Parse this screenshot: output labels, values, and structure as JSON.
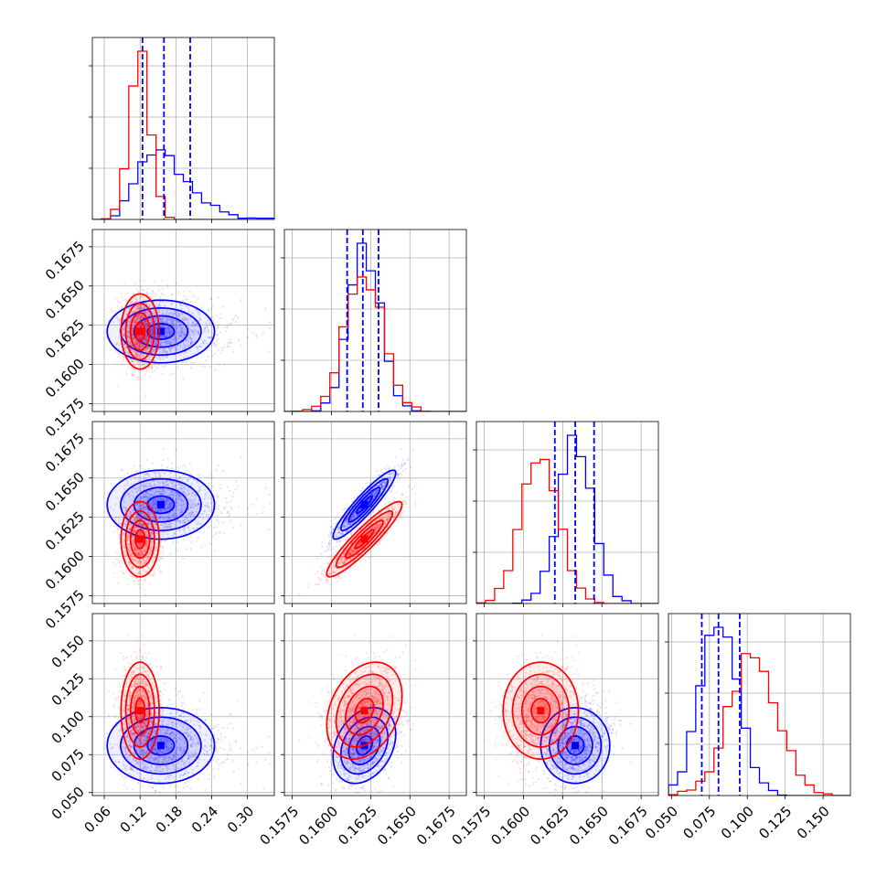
{
  "chart_data": {
    "type": "corner",
    "parameters": 4,
    "grid": true,
    "colors": {
      "set_a": "#0000ff",
      "set_b": "#ff0000"
    },
    "axes": [
      {
        "range": [
          0.04,
          0.345
        ],
        "ticks": [
          0.06,
          0.12,
          0.18,
          0.24,
          0.3
        ],
        "tick_labels": [
          "0.06",
          "0.12",
          "0.18",
          "0.24",
          "0.30"
        ]
      },
      {
        "range": [
          0.157,
          0.1686
        ],
        "ticks": [
          0.1575,
          0.16,
          0.1625,
          0.165,
          0.1675
        ],
        "tick_labels": [
          "0.1575",
          "0.1600",
          "0.1625",
          "0.1650",
          "0.1675"
        ]
      },
      {
        "range": [
          0.157,
          0.1686
        ],
        "ticks": [
          0.1575,
          0.16,
          0.1625,
          0.165,
          0.1675
        ],
        "tick_labels": [
          "0.1575",
          "0.1600",
          "0.1625",
          "0.1650",
          "0.1675"
        ]
      },
      {
        "range": [
          0.048,
          0.168
        ],
        "ticks": [
          0.05,
          0.075,
          0.1,
          0.125,
          0.15
        ],
        "tick_labels": [
          "0.050",
          "0.075",
          "0.100",
          "0.125",
          "0.150"
        ]
      }
    ],
    "series": [
      {
        "color": "#0000ff",
        "mean": [
          0.164,
          0.1621,
          0.1633,
          0.081
        ],
        "std": [
          0.045,
          0.001,
          0.0011,
          0.0125
        ],
        "corr": {
          "0-1": 0.0,
          "0-2": 0.0,
          "0-3": 0.0,
          "1-2": 0.92,
          "1-3": 0.3,
          "2-3": 0.0
        },
        "quantiles": [
          [
            0.124,
            0.16,
            0.204
          ],
          [
            0.161,
            0.162,
            0.163
          ],
          [
            0.162,
            0.1633,
            0.1645
          ],
          [
            0.07,
            0.081,
            0.095
          ]
        ]
      },
      {
        "color": "#ff0000",
        "mean": [
          0.12,
          0.1621,
          0.1611,
          0.104
        ],
        "std": [
          0.016,
          0.0012,
          0.0012,
          0.016
        ],
        "corr": {
          "0-1": 0.0,
          "0-2": 0.0,
          "0-3": 0.0,
          "1-2": 0.92,
          "1-3": 0.3,
          "2-3": 0.0
        }
      }
    ]
  }
}
